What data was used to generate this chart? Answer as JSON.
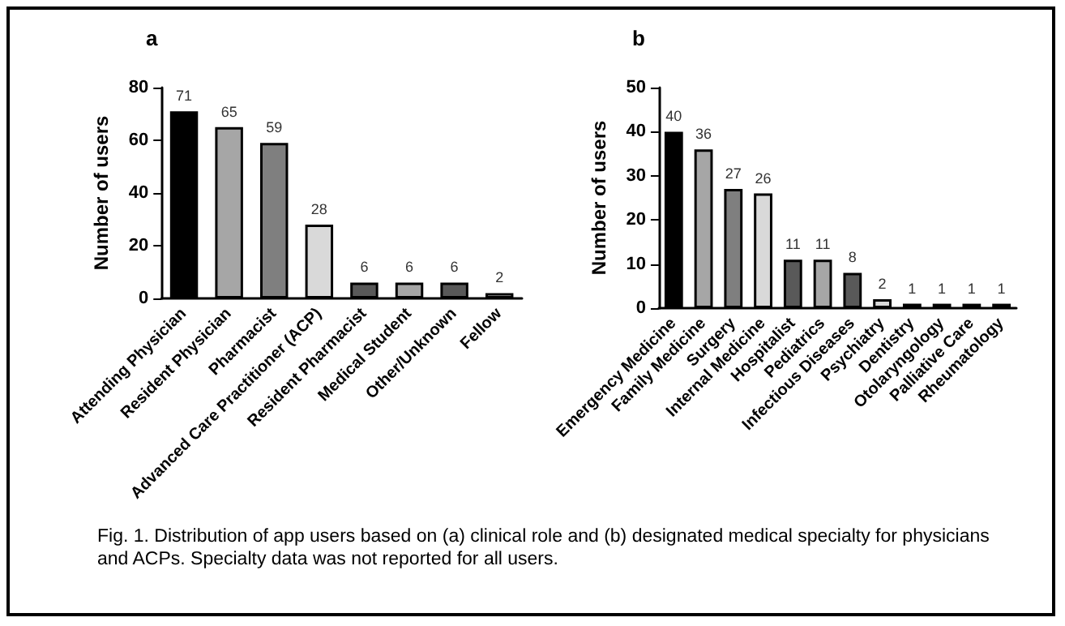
{
  "chart_data": [
    {
      "type": "bar",
      "title": "a",
      "ylabel": "Number of users",
      "categories": [
        "Attending Physician",
        "Resident Physician",
        "Pharmacist",
        "Advanced Care Practitioner (ACP)",
        "Resident Pharmacist",
        "Medical Student",
        "Other/Unknown",
        "Fellow"
      ],
      "values": [
        71,
        65,
        59,
        28,
        6,
        6,
        6,
        2
      ],
      "colors": [
        "#000000",
        "#a6a6a6",
        "#7f7f7f",
        "#d9d9d9",
        "#595959",
        "#a6a6a6",
        "#595959",
        "#d9d9d9"
      ],
      "ylim": [
        0,
        80
      ],
      "yticks": [
        0,
        20,
        40,
        60,
        80
      ],
      "grid": false,
      "data_labels": true,
      "annotations": [
        "Fig. 1. Distribution of app users based on (a) clinical role and (b) designated medical specialty for physicians and ACPs. Specialty data was not reported for all users."
      ]
    },
    {
      "type": "bar",
      "title": "b",
      "ylabel": "Number of users",
      "categories": [
        "Emergency Medicine",
        "Family Medicine",
        "Surgery",
        "Internal Medicine",
        "Hospitalist",
        "Pediatrics",
        "Infectious Diseases",
        "Psychiatry",
        "Dentistry",
        "Otolaryngology",
        "Palliative Care",
        "Rheumatology"
      ],
      "values": [
        40,
        36,
        27,
        26,
        11,
        11,
        8,
        2,
        1,
        1,
        1,
        1
      ],
      "colors": [
        "#000000",
        "#a6a6a6",
        "#7f7f7f",
        "#d9d9d9",
        "#595959",
        "#a6a6a6",
        "#595959",
        "#d9d9d9",
        "#595959",
        "#595959",
        "#595959",
        "#595959"
      ],
      "ylim": [
        0,
        50
      ],
      "yticks": [
        0,
        10,
        20,
        30,
        40,
        50
      ],
      "grid": false,
      "data_labels": true
    }
  ]
}
